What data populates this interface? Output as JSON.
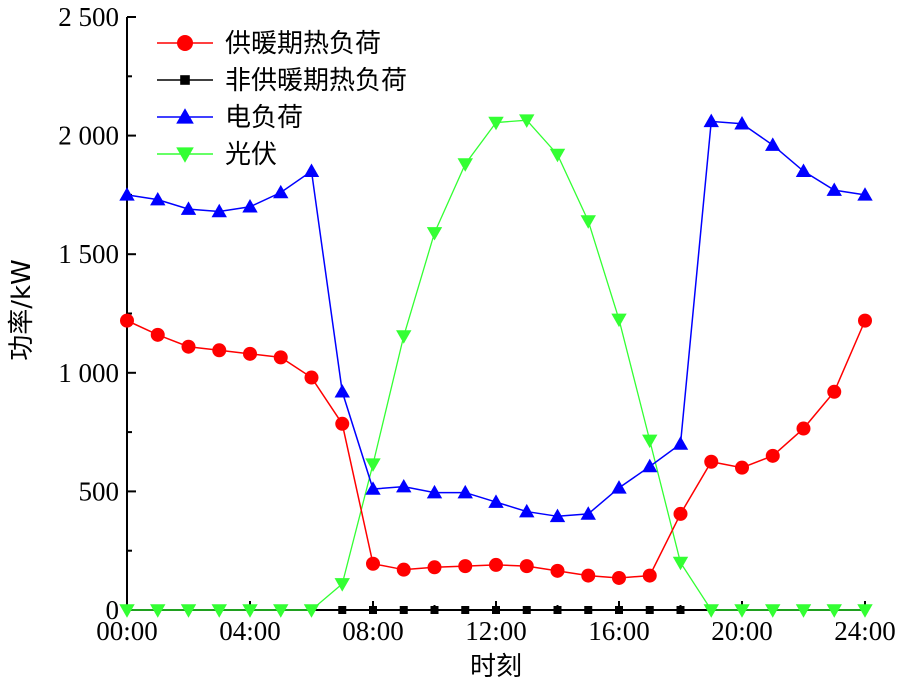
{
  "chart_data": {
    "type": "line",
    "xlabel": "时刻",
    "ylabel": "功率/kW",
    "xlim": [
      0,
      24
    ],
    "ylim": [
      0,
      2500
    ],
    "x_ticks": [
      0,
      4,
      8,
      12,
      16,
      20,
      24
    ],
    "x_tick_labels": [
      "00:00",
      "04:00",
      "08:00",
      "12:00",
      "16:00",
      "20:00",
      "24:00"
    ],
    "y_ticks": [
      0,
      500,
      1000,
      1500,
      2000,
      2500
    ],
    "y_tick_labels": [
      "0",
      "500",
      "1 000",
      "1 500",
      "2 000",
      "2 500"
    ],
    "grid": false,
    "legend_position": "top-left",
    "x": [
      0,
      1,
      2,
      3,
      4,
      5,
      6,
      7,
      8,
      9,
      10,
      11,
      12,
      13,
      14,
      15,
      16,
      17,
      18,
      19,
      20,
      21,
      22,
      23,
      24
    ],
    "series": [
      {
        "name": "供暖期热负荷",
        "color": "#ff0000",
        "marker": "circle",
        "values": [
          1220,
          1160,
          1110,
          1095,
          1080,
          1065,
          980,
          785,
          195,
          170,
          180,
          185,
          190,
          185,
          165,
          145,
          135,
          145,
          405,
          625,
          600,
          650,
          765,
          920,
          1220
        ]
      },
      {
        "name": "非供暖期热负荷",
        "color": "#000000",
        "marker": "square",
        "values": [
          null,
          null,
          null,
          null,
          null,
          null,
          null,
          0,
          0,
          0,
          0,
          0,
          0,
          0,
          0,
          0,
          0,
          0,
          0,
          null,
          null,
          null,
          null,
          null,
          null
        ]
      },
      {
        "name": "电负荷",
        "color": "#0000ff",
        "marker": "triangle-up",
        "values": [
          1750,
          1730,
          1690,
          1680,
          1700,
          1760,
          1850,
          920,
          510,
          520,
          495,
          495,
          455,
          415,
          395,
          405,
          515,
          605,
          700,
          2060,
          2050,
          1960,
          1850,
          1770,
          1750
        ]
      },
      {
        "name": "光伏",
        "color": "#33ff33",
        "marker": "triangle-down",
        "values": [
          0,
          0,
          0,
          0,
          0,
          0,
          0,
          110,
          615,
          1155,
          1590,
          1880,
          2055,
          2065,
          1920,
          1640,
          1225,
          715,
          200,
          0,
          0,
          0,
          0,
          0,
          0
        ]
      }
    ]
  }
}
